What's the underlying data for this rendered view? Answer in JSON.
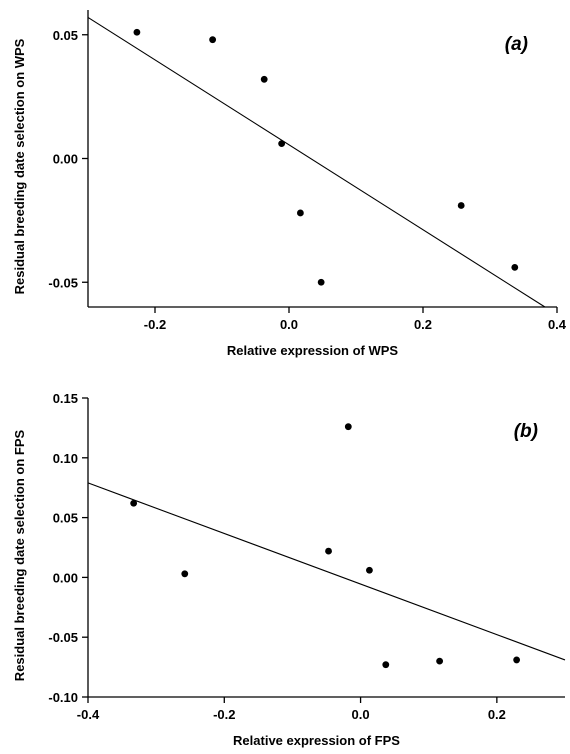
{
  "chart_data": [
    {
      "type": "scatter",
      "panel_label": "(a)",
      "xlabel": "Relative expression of WPS",
      "ylabel": "Residual breeding date selection on WPS",
      "xlim": [
        -0.3,
        0.4
      ],
      "ylim": [
        -0.06,
        0.06
      ],
      "xticks": [
        -0.2,
        0.0,
        0.2,
        0.4
      ],
      "xtick_labels": [
        "-0.2",
        "0.0",
        "0.2",
        "0.4"
      ],
      "yticks": [
        -0.05,
        0.0,
        0.05
      ],
      "ytick_labels": [
        "-0.05",
        "0.00",
        "0.05"
      ],
      "points": [
        {
          "x": -0.227,
          "y": 0.051
        },
        {
          "x": -0.114,
          "y": 0.048
        },
        {
          "x": -0.037,
          "y": 0.032
        },
        {
          "x": -0.011,
          "y": 0.006
        },
        {
          "x": 0.017,
          "y": -0.022
        },
        {
          "x": 0.048,
          "y": -0.05
        },
        {
          "x": 0.257,
          "y": -0.019
        },
        {
          "x": 0.337,
          "y": -0.044
        }
      ],
      "fit_line": {
        "x": [
          -0.3,
          0.382
        ],
        "y": [
          0.057,
          -0.06
        ]
      },
      "grid": false,
      "legend": "none"
    },
    {
      "type": "scatter",
      "panel_label": "(b)",
      "xlabel": "Relative expression of FPS",
      "ylabel": "Residual breeding date selection on FPS",
      "xlim": [
        -0.4,
        0.3
      ],
      "ylim": [
        -0.1,
        0.15
      ],
      "xticks": [
        -0.4,
        -0.2,
        0.0,
        0.2
      ],
      "xtick_labels": [
        "-0.4",
        "-0.2",
        "0.0",
        "0.2"
      ],
      "yticks": [
        -0.1,
        -0.05,
        0.0,
        0.05,
        0.1,
        0.15
      ],
      "ytick_labels": [
        "-0.10",
        "-0.05",
        "0.00",
        "0.05",
        "0.10",
        "0.15"
      ],
      "points": [
        {
          "x": -0.333,
          "y": 0.062
        },
        {
          "x": -0.258,
          "y": 0.003
        },
        {
          "x": -0.047,
          "y": 0.022
        },
        {
          "x": -0.018,
          "y": 0.126
        },
        {
          "x": 0.013,
          "y": 0.006
        },
        {
          "x": 0.037,
          "y": -0.073
        },
        {
          "x": 0.116,
          "y": -0.07
        },
        {
          "x": 0.229,
          "y": -0.069
        }
      ],
      "fit_line": {
        "x": [
          -0.4,
          0.3
        ],
        "y": [
          0.079,
          -0.069
        ]
      },
      "grid": false,
      "legend": "none"
    }
  ]
}
